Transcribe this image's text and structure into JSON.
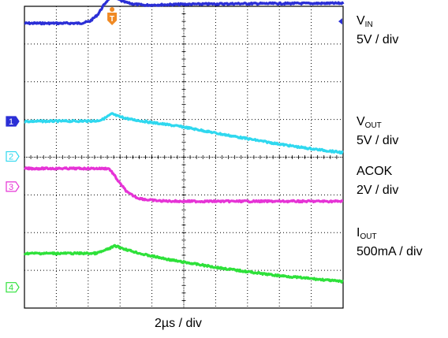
{
  "chart_data": {
    "type": "line",
    "xlabel": "2µs / div",
    "x_unit": "µs",
    "xlim": [
      -5.5,
      14.5
    ],
    "grid": true,
    "grid_divisions": {
      "x": 10,
      "y": 8
    },
    "trigger_marker": "T",
    "series": [
      {
        "channel": "1",
        "name_main": "V",
        "name_sub": "IN",
        "scale": "5V / div",
        "color": "#2b2fd6",
        "x": [
          -5.5,
          -2.0,
          -1.4,
          -0.9,
          -0.6,
          -0.4,
          -0.2,
          0.0,
          0.3,
          0.7,
          1.2,
          2.0,
          4.0,
          8.0,
          14.5
        ],
        "y_div": [
          3.55,
          3.55,
          3.6,
          3.78,
          3.98,
          4.1,
          4.2,
          4.34,
          4.2,
          4.12,
          4.07,
          4.03,
          4.05,
          4.07,
          4.08
        ]
      },
      {
        "channel": "2",
        "name_main": "V",
        "name_sub": "OUT",
        "scale": "5V / div",
        "color": "#2fd8ef",
        "x": [
          -5.5,
          -1.0,
          -0.6,
          0.0,
          0.4,
          1.2,
          2.5,
          4.5,
          7.0,
          10.0,
          12.0,
          14.5
        ],
        "y_div": [
          0.95,
          0.96,
          1.0,
          1.15,
          1.08,
          1.0,
          0.92,
          0.8,
          0.6,
          0.38,
          0.25,
          0.12
        ]
      },
      {
        "channel": "3",
        "name_main": "ACOK",
        "name_sub": "",
        "scale": "2V / div",
        "color": "#e633d6",
        "x": [
          -5.5,
          -0.2,
          0.0,
          0.5,
          1.0,
          1.6,
          2.2,
          3.0,
          4.5,
          8.0,
          14.5
        ],
        "y_div": [
          -0.3,
          -0.3,
          -0.4,
          -0.7,
          -0.95,
          -1.08,
          -1.13,
          -1.16,
          -1.17,
          -1.17,
          -1.17
        ]
      },
      {
        "channel": "4",
        "name_main": "I",
        "name_sub": "OUT",
        "scale": "500mA / div",
        "color": "#2ee13a",
        "x": [
          -5.5,
          -1.0,
          -0.5,
          0.2,
          0.9,
          2.0,
          4.0,
          7.0,
          10.0,
          14.5
        ],
        "y_div": [
          -2.55,
          -2.55,
          -2.48,
          -2.35,
          -2.45,
          -2.58,
          -2.75,
          -2.95,
          -3.12,
          -3.3
        ]
      }
    ]
  }
}
